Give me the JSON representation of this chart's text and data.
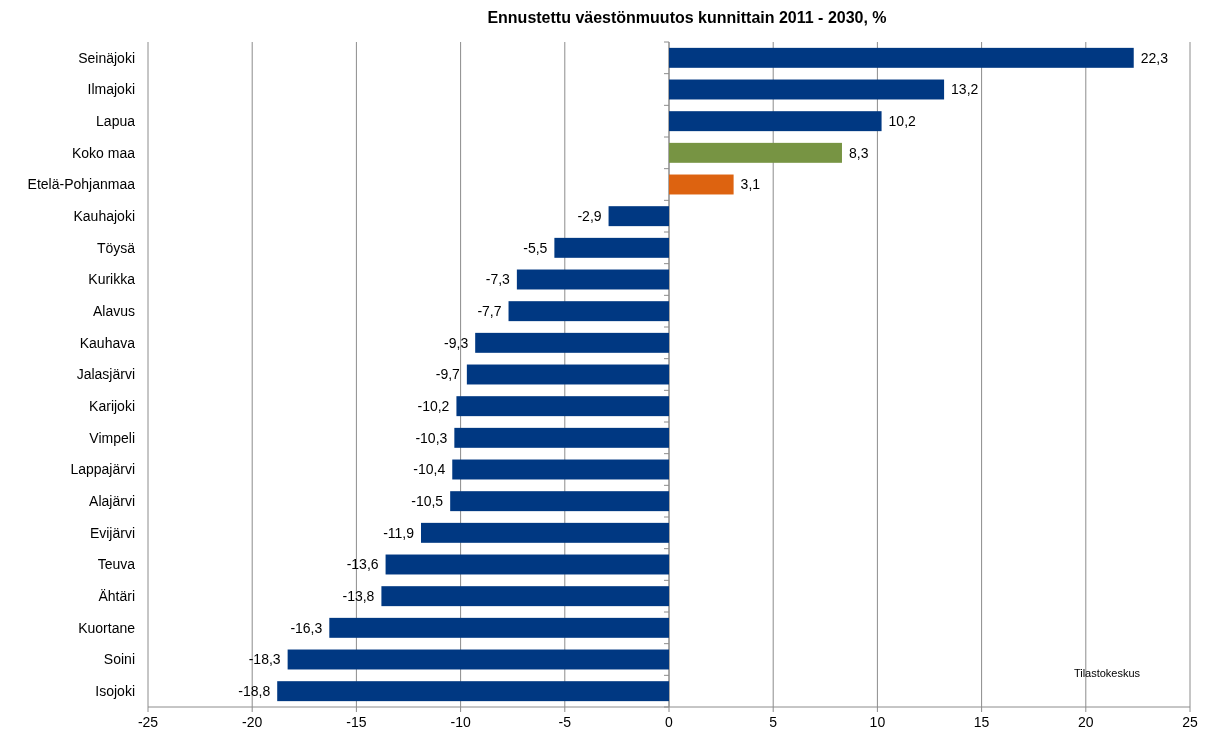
{
  "chart_data": {
    "type": "bar",
    "orientation": "horizontal",
    "title": "Ennustettu väestönmuutos kunnittain 2011 - 2030, %",
    "categories": [
      "Seinäjoki",
      "Ilmajoki",
      "Lapua",
      "Koko maa",
      "Etelä-Pohjanmaa",
      "Kauhajoki",
      "Töysä",
      "Kurikka",
      "Alavus",
      "Kauhava",
      "Jalasjärvi",
      "Karijoki",
      "Vimpeli",
      "Lappajärvi",
      "Alajärvi",
      "Evijärvi",
      "Teuva",
      "Ähtäri",
      "Kuortane",
      "Soini",
      "Isojoki"
    ],
    "values": [
      22.3,
      13.2,
      10.2,
      8.3,
      3.1,
      -2.9,
      -5.5,
      -7.3,
      -7.7,
      -9.3,
      -9.7,
      -10.2,
      -10.3,
      -10.4,
      -10.5,
      -11.9,
      -13.6,
      -13.8,
      -16.3,
      -18.3,
      -18.8
    ],
    "value_labels": [
      "22,3",
      "13,2",
      "10,2",
      "8,3",
      "3,1",
      "-2,9",
      "-5,5",
      "-7,3",
      "-7,7",
      "-9,3",
      "-9,7",
      "-10,2",
      "-10,3",
      "-10,4",
      "-10,5",
      "-11,9",
      "-13,6",
      "-13,8",
      "-16,3",
      "-18,3",
      "-18,8"
    ],
    "colors": [
      "#003882",
      "#003882",
      "#003882",
      "#779443",
      "#dd6310",
      "#003882",
      "#003882",
      "#003882",
      "#003882",
      "#003882",
      "#003882",
      "#003882",
      "#003882",
      "#003882",
      "#003882",
      "#003882",
      "#003882",
      "#003882",
      "#003882",
      "#003882",
      "#003882"
    ],
    "xlim": [
      -25,
      25
    ],
    "xticks": [
      -25,
      -20,
      -15,
      -10,
      -5,
      0,
      5,
      10,
      15,
      20,
      25
    ],
    "grid": "x",
    "annotations": [
      "Tilastokeskus"
    ]
  }
}
